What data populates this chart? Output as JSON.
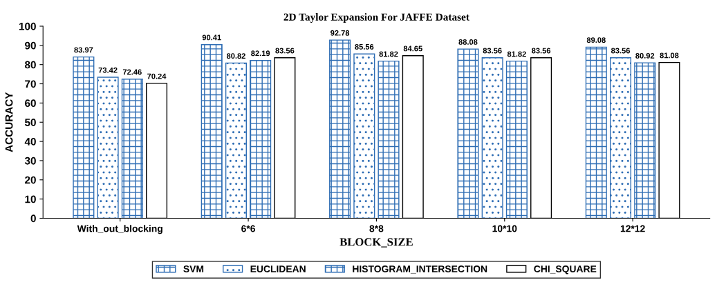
{
  "chart_data": {
    "type": "bar",
    "title": "2D Taylor Expansion For JAFFE Dataset",
    "xlabel": "BLOCK_SIZE",
    "ylabel": "ACCURACY",
    "categories": [
      "With_out_blocking",
      "6*6",
      "8*8",
      "10*10",
      "12*12"
    ],
    "series": [
      {
        "name": "SVM",
        "color": "#2e6db4",
        "values": [
          83.97,
          90.41,
          92.78,
          88.08,
          89.08
        ]
      },
      {
        "name": "EUCLIDEAN",
        "color": "#2e6db4",
        "values": [
          73.42,
          80.82,
          85.56,
          83.56,
          83.56
        ]
      },
      {
        "name": "HISTOGRAM_INTERSECTION",
        "color": "#2e6db4",
        "values": [
          72.46,
          82.19,
          81.82,
          81.82,
          80.92
        ]
      },
      {
        "name": "CHI_SQUARE",
        "color": "#000000",
        "values": [
          70.24,
          83.56,
          84.65,
          83.56,
          81.08
        ]
      }
    ],
    "ylim": [
      0,
      100
    ],
    "yticks": [
      0,
      10,
      20,
      30,
      40,
      50,
      60,
      70,
      80,
      90,
      100
    ],
    "grid": false,
    "legend": "bottom",
    "data_labels": true
  }
}
